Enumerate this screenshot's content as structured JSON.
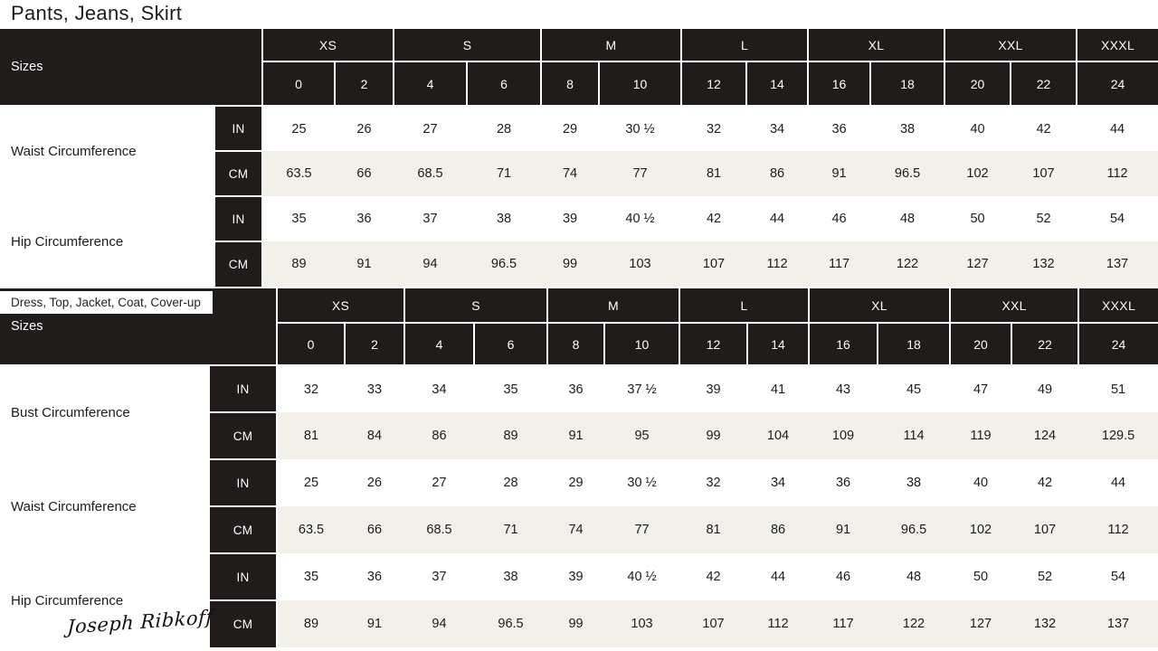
{
  "brand_logo": "Joseph Ribkoff",
  "colors": {
    "dark": "#1f1c1b",
    "light_row": "#f1f0ea",
    "page": "#ffffff",
    "text": "#1d1b1b"
  },
  "header": {
    "sizes_label": "Sizes",
    "size_groups": [
      {
        "label": "XS",
        "span": 2
      },
      {
        "label": "S",
        "span": 2
      },
      {
        "label": "M",
        "span": 2
      },
      {
        "label": "L",
        "span": 2
      },
      {
        "label": "XL",
        "span": 2
      },
      {
        "label": "XXL",
        "span": 2
      },
      {
        "label": "XXXL",
        "span": 1
      }
    ],
    "numeric_sizes": [
      "0",
      "2",
      "4",
      "6",
      "8",
      "10",
      "12",
      "14",
      "16",
      "18",
      "20",
      "22",
      "24"
    ]
  },
  "unit_labels": [
    "IN",
    "CM"
  ],
  "tables": [
    {
      "title": "Pants, Jeans, Skirt",
      "measurements": [
        {
          "label": "Waist Circumference",
          "in": [
            "25",
            "26",
            "27",
            "28",
            "29",
            "30 ½",
            "32",
            "34",
            "36",
            "38",
            "40",
            "42",
            "44"
          ],
          "cm": [
            "63.5",
            "66",
            "68.5",
            "71",
            "74",
            "77",
            "81",
            "86",
            "91",
            "96.5",
            "102",
            "107",
            "112"
          ]
        },
        {
          "label": "Hip Circumference",
          "in": [
            "35",
            "36",
            "37",
            "38",
            "39",
            "40 ½",
            "42",
            "44",
            "46",
            "48",
            "50",
            "52",
            "54"
          ],
          "cm": [
            "89",
            "91",
            "94",
            "96.5",
            "99",
            "103",
            "107",
            "112",
            "117",
            "122",
            "127",
            "132",
            "137"
          ]
        }
      ]
    },
    {
      "title": "Dress, Top, Jacket, Coat, Cover-up",
      "measurements": [
        {
          "label": "Bust Circumference",
          "in": [
            "32",
            "33",
            "34",
            "35",
            "36",
            "37 ½",
            "39",
            "41",
            "43",
            "45",
            "47",
            "49",
            "51"
          ],
          "cm": [
            "81",
            "84",
            "86",
            "89",
            "91",
            "95",
            "99",
            "104",
            "109",
            "114",
            "119",
            "124",
            "129.5"
          ]
        },
        {
          "label": "Waist Circumference",
          "in": [
            "25",
            "26",
            "27",
            "28",
            "29",
            "30 ½",
            "32",
            "34",
            "36",
            "38",
            "40",
            "42",
            "44"
          ],
          "cm": [
            "63.5",
            "66",
            "68.5",
            "71",
            "74",
            "77",
            "81",
            "86",
            "91",
            "96.5",
            "102",
            "107",
            "112"
          ]
        },
        {
          "label": "Hip Circumference",
          "in": [
            "35",
            "36",
            "37",
            "38",
            "39",
            "40 ½",
            "42",
            "44",
            "46",
            "48",
            "50",
            "52",
            "54"
          ],
          "cm": [
            "89",
            "91",
            "94",
            "96.5",
            "99",
            "103",
            "107",
            "112",
            "117",
            "122",
            "127",
            "132",
            "137"
          ]
        }
      ]
    }
  ]
}
